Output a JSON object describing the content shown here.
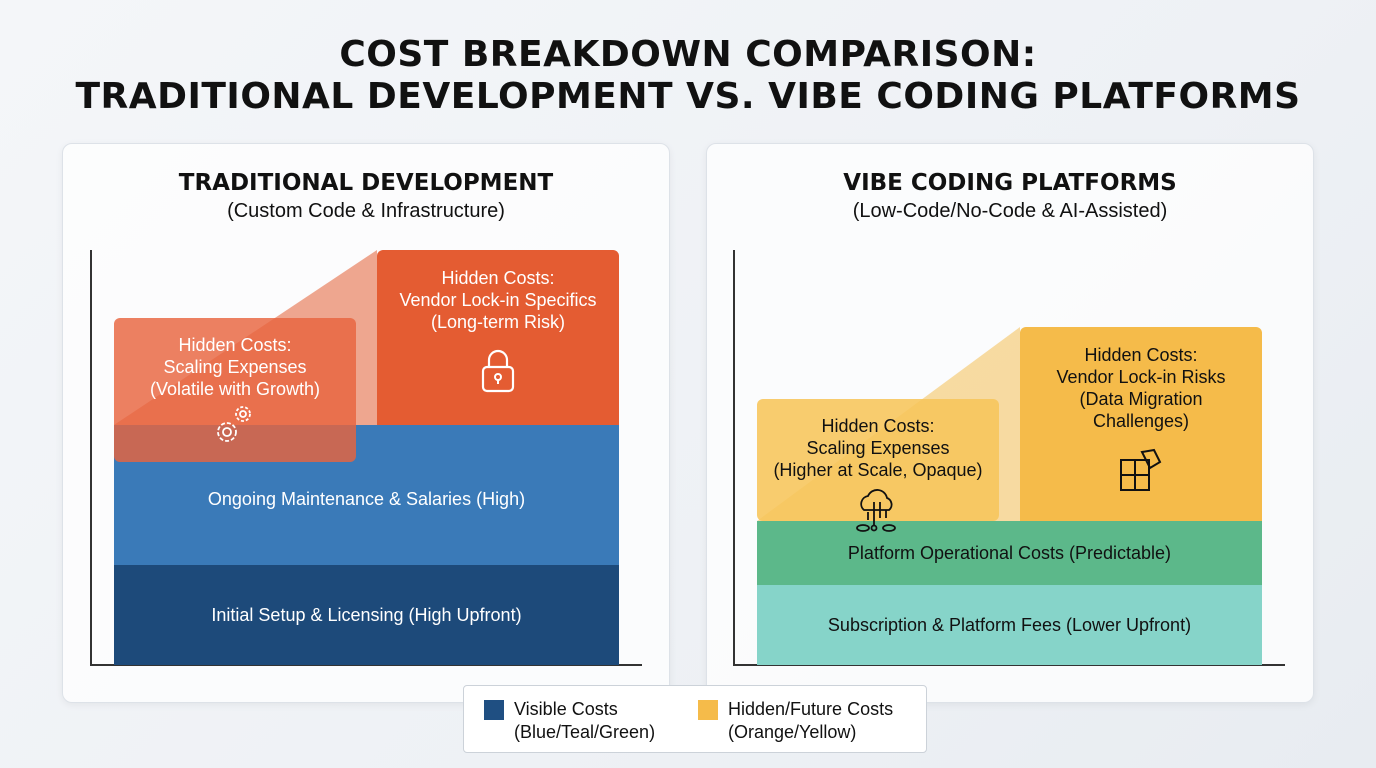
{
  "title": {
    "line1": "COST BREAKDOWN COMPARISON:",
    "line2": "TRADITIONAL DEVELOPMENT VS. VIBE CODING PLATFORMS"
  },
  "traditional": {
    "heading": "TRADITIONAL DEVELOPMENT",
    "subheading": "(Custom Code & Infrastructure)",
    "initial": "Initial Setup & Licensing (High Upfront)",
    "maintenance": "Ongoing Maintenance & Salaries (High)",
    "scaling": {
      "l1": "Hidden Costs:",
      "l2": "Scaling Expenses",
      "l3": "(Volatile with Growth)",
      "icon": "gears-icon"
    },
    "lockin": {
      "l1": "Hidden Costs:",
      "l2": "Vendor Lock-in Specifics",
      "l3": "(Long-term Risk)",
      "icon": "padlock-icon"
    }
  },
  "vibe": {
    "heading": "VIBE CODING PLATFORMS",
    "subheading": "(Low-Code/No-Code & AI-Assisted)",
    "subscription": "Subscription & Platform Fees (Lower Upfront)",
    "operational": "Platform Operational Costs (Predictable)",
    "scaling": {
      "l1": "Hidden Costs:",
      "l2": "Scaling Expenses",
      "l3": "(Higher at Scale, Opaque)",
      "icon": "cloud-network-icon"
    },
    "lockin": {
      "l1": "Hidden Costs:",
      "l2": "Vendor Lock-in Risks",
      "l3": "(Data Migration",
      "l4": "Challenges)",
      "icon": "puzzle-icon"
    }
  },
  "legend": {
    "visible": {
      "l1": "Visible Costs",
      "l2": "(Blue/Teal/Green)",
      "color": "#1f4f82"
    },
    "hidden": {
      "l1": "Hidden/Future Costs",
      "l2": "(Orange/Yellow)",
      "color": "#f5bb4a"
    }
  },
  "colors": {
    "dark_blue": "#1d4a7a",
    "blue": "#3a7ab8",
    "orange": "#e45c32",
    "teal": "#86d4c9",
    "green": "#5cb88a",
    "yellow": "#f5bb4a"
  }
}
